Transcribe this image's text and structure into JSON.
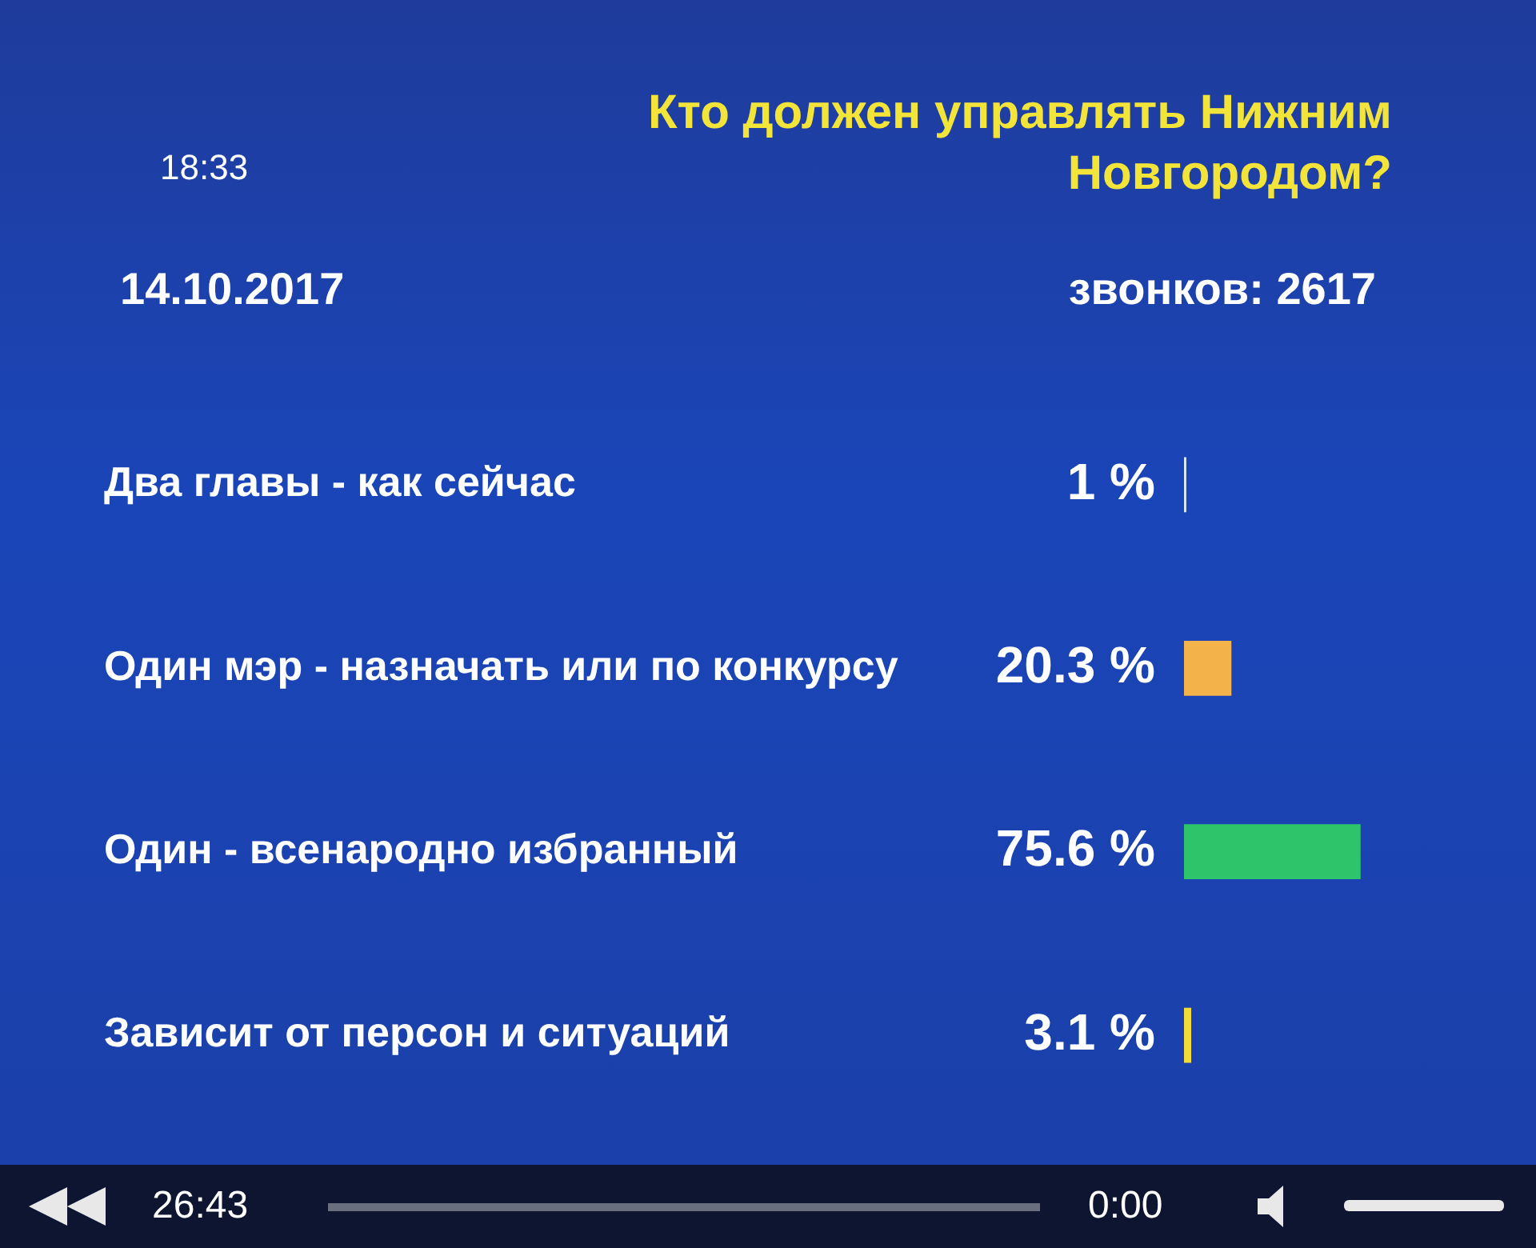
{
  "chart_data": {
    "type": "bar",
    "orientation": "horizontal",
    "title": "Кто должен управлять Нижним Новгородом?",
    "categories": [
      "Два главы - как сейчас",
      "Один мэр - назначать или по конкурсу",
      "Один - всенародно избранный",
      "Зависит от персон и ситуаций"
    ],
    "values": [
      1,
      20.3,
      75.6,
      3.1
    ],
    "colors": [
      "#d8ecf8",
      "#f3b24a",
      "#2ec46a",
      "#f2dc3a"
    ],
    "value_labels": [
      "1 %",
      "20.3 %",
      "75.6 %",
      "3.1 %"
    ],
    "annotations": [
      "14.10.2017",
      "18:33",
      "звонков: 2617",
      "26:43",
      "0:00"
    ],
    "tick_labels": "y",
    "grid": false,
    "legend": false
  }
}
